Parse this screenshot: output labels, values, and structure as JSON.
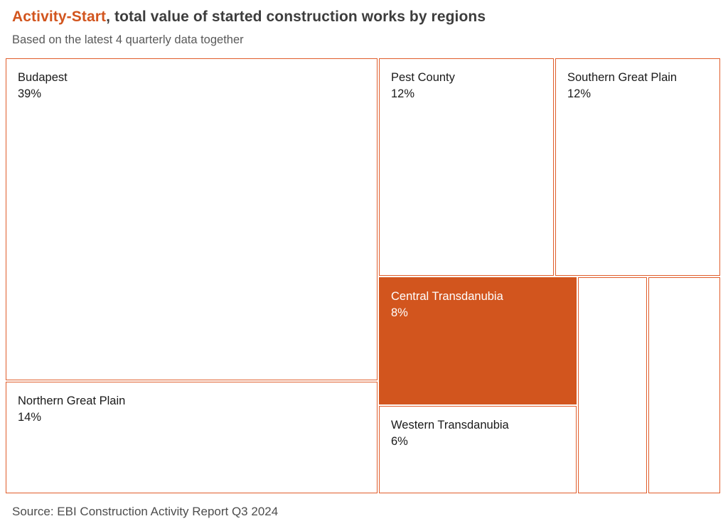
{
  "header": {
    "title_accent": "Activity-Start",
    "title_rest": ", total value of started construction works by regions",
    "subtitle": "Based on the latest 4 quarterly data together"
  },
  "footer": {
    "source": "Source: EBI Construction Activity Report Q3 2024"
  },
  "colors": {
    "accent_orange": "#d2551e",
    "cell_border": "#e05d2b",
    "highlight_fill": "#d2551e",
    "highlight_text": "#ffffff",
    "title_text": "#3d3d3d",
    "subtitle_text": "#595959",
    "cell_text": "#1a1a1a",
    "source_text": "#4d4d4d"
  },
  "chart_data": {
    "type": "treemap",
    "title": "Activity-Start, total value of started construction works by regions",
    "subtitle": "Based on the latest 4 quarterly data together",
    "source": "Source: EBI Construction Activity Report Q3 2024",
    "unit": "%",
    "legend": "none",
    "cells": [
      {
        "label": "Budapest",
        "value": 39,
        "display": "39%",
        "highlighted": false
      },
      {
        "label": "Pest County",
        "value": 12,
        "display": "12%",
        "highlighted": false
      },
      {
        "label": "Southern Great Plain",
        "value": 12,
        "display": "12%",
        "highlighted": false
      },
      {
        "label": "Central Transdanubia",
        "value": 8,
        "display": "8%",
        "highlighted": true
      },
      {
        "label": "Northern Great Plain",
        "value": 14,
        "display": "14%",
        "highlighted": false
      },
      {
        "label": "Western Transdanubia",
        "value": 6,
        "display": "6%",
        "highlighted": false
      },
      {
        "label": "",
        "value": null,
        "display": "",
        "highlighted": false
      },
      {
        "label": "",
        "value": null,
        "display": "",
        "highlighted": false
      }
    ]
  }
}
